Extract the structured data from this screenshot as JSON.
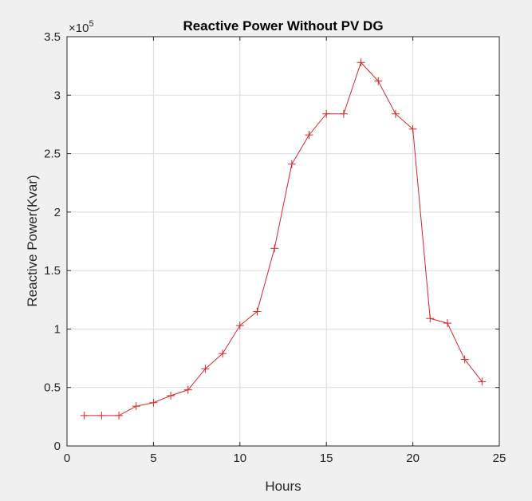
{
  "chart_data": {
    "type": "line",
    "title": "Reactive Power Without PV DG",
    "xlabel": "Hours",
    "ylabel": "Reactive Power(Kvar)",
    "exponent_label_base": "×10",
    "exponent_label_power": "5",
    "xlim": [
      0,
      25
    ],
    "ylim": [
      0,
      3.5
    ],
    "xticks": [
      "0",
      "5",
      "10",
      "15",
      "20",
      "25"
    ],
    "yticks": [
      "0",
      "0.5",
      "1",
      "1.5",
      "2",
      "2.5",
      "3",
      "3.5"
    ],
    "grid": true,
    "line_color": "#d62728",
    "marker": "+",
    "series": [
      {
        "x": [
          1,
          2,
          3,
          4,
          5,
          6,
          7,
          8,
          9,
          10,
          11,
          12,
          13,
          14,
          15,
          16,
          17,
          18,
          19,
          20,
          21,
          22,
          23,
          24
        ],
        "values": [
          0.26,
          0.26,
          0.26,
          0.34,
          0.37,
          0.43,
          0.48,
          0.66,
          0.79,
          1.03,
          1.15,
          1.69,
          2.41,
          2.66,
          2.84,
          2.84,
          3.28,
          3.12,
          2.84,
          2.71,
          1.09,
          1.05,
          0.74,
          0.55
        ]
      }
    ]
  }
}
